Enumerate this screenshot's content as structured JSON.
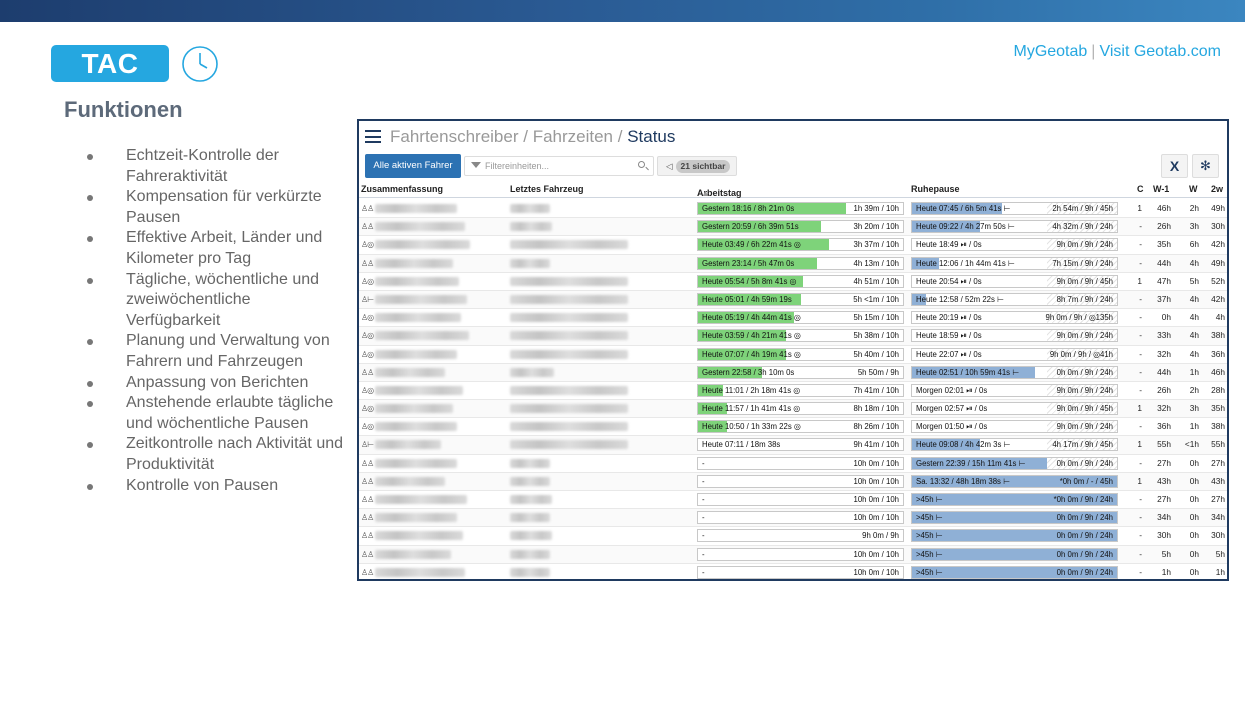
{
  "header": {
    "badge": "TAC",
    "clock_icon": "clock-icon",
    "links": {
      "mygeotab": "MyGeotab",
      "separator": "|",
      "visit": "Visit Geotab.com"
    }
  },
  "section": {
    "title": "Funktionen",
    "bullets": [
      "Echtzeit-Kontrolle der Fahreraktivität",
      "Kompensation für verkürzte Pausen",
      "Effektive Arbeit, Länder und Kilometer pro Tag",
      "Tägliche, wöchentliche und zweiwöchentliche Verfügbarkeit",
      "Planung und Verwaltung von Fahrern und Fahrzeugen",
      "Anpassung von Berichten",
      "Anstehende erlaubte tägliche und wöchentliche Pausen",
      "Zeitkontrolle nach Aktivität und Produktivität",
      "Kontrolle von Pausen"
    ]
  },
  "app": {
    "breadcrumb": {
      "part1": "Fahrtenschreiber",
      "sep": " / ",
      "part2": "Fahrzeiten",
      "current": "Status"
    },
    "toolbar": {
      "active_drivers": "Alle aktiven Fahrer",
      "filter_placeholder": "Filtereinheiten...",
      "visible_count": "21 sichtbar",
      "excel": "X",
      "settings_icon": "gear-icon"
    },
    "columns": {
      "summary": "Zusammenfassung",
      "vehicle": "Letztes Fahrzeug",
      "workday": "Arbeitstag",
      "rest": "Ruhepause",
      "c": "C",
      "w1": "W-1",
      "w": "W",
      "w2": "2w"
    },
    "colors": {
      "work_fill": "#7ed37a",
      "rest_fill": "#8fb0d6",
      "frame": "#1f3a60",
      "accent": "#25a7e0"
    },
    "rows": [
      {
        "icon": "♙♙",
        "work": "Gestern 18:16 / 8h 21m 0s",
        "work_pct": 0.72,
        "work_right": "1h 39m / 10h",
        "rest": "Heute 07:45 / 6h 5m 41s ⊢",
        "rest_pct": 0.44,
        "rest_right": "2h 54m / 9h / 45h",
        "c": "1",
        "w1": "46h",
        "w": "2h",
        "w2": "49h"
      },
      {
        "icon": "♙♙",
        "work": "Gestern 20:59 / 6h 39m 51s",
        "work_pct": 0.6,
        "work_right": "3h 20m / 10h",
        "rest": "Heute 09:22 / 4h 27m 50s ⊢",
        "rest_pct": 0.33,
        "rest_right": "4h 32m / 9h / 24h",
        "c": "-",
        "w1": "26h",
        "w": "3h",
        "w2": "30h"
      },
      {
        "icon": "♙◎",
        "work": "Heute 03:49 / 6h 22m 41s ◎",
        "work_pct": 0.64,
        "work_right": "3h 37m / 10h",
        "rest": "Heute 18:49 ⏯ / 0s",
        "rest_pct": 0,
        "rest_right": "9h 0m / 9h / 24h",
        "c": "-",
        "w1": "35h",
        "w": "6h",
        "w2": "42h"
      },
      {
        "icon": "♙♙",
        "work": "Gestern 23:14 / 5h 47m 0s",
        "work_pct": 0.58,
        "work_right": "4h 13m / 10h",
        "rest": "Heute 12:06 / 1h 44m 41s ⊢",
        "rest_pct": 0.13,
        "rest_right": "7h 15m / 9h / 24h",
        "c": "-",
        "w1": "44h",
        "w": "4h",
        "w2": "49h"
      },
      {
        "icon": "♙◎",
        "work": "Heute 05:54 / 5h 8m 41s ◎",
        "work_pct": 0.51,
        "work_right": "4h 51m / 10h",
        "rest": "Heute 20:54 ⏯ / 0s",
        "rest_pct": 0,
        "rest_right": "9h 0m / 9h / 45h",
        "c": "1",
        "w1": "47h",
        "w": "5h",
        "w2": "52h"
      },
      {
        "icon": "♙⊢",
        "work": "Heute 05:01 / 4h 59m 19s",
        "work_pct": 0.5,
        "work_right": "5h <1m / 10h",
        "rest": "Heute 12:58 / 52m 22s ⊢",
        "rest_pct": 0.07,
        "rest_right": "8h 7m / 9h / 24h",
        "c": "-",
        "w1": "37h",
        "w": "4h",
        "w2": "42h"
      },
      {
        "icon": "♙◎",
        "work": "Heute 05:19 / 4h 44m 41s ◎",
        "work_pct": 0.47,
        "work_right": "5h 15m / 10h",
        "rest": "Heute 20:19 ⏯ / 0s",
        "rest_pct": 0,
        "rest_right": "9h 0m / 9h / ◎135h",
        "c": "-",
        "w1": "0h",
        "w": "4h",
        "w2": "4h"
      },
      {
        "icon": "♙◎",
        "work": "Heute 03:59 / 4h 21m 41s ◎",
        "work_pct": 0.43,
        "work_right": "5h 38m / 10h",
        "rest": "Heute 18:59 ⏯ / 0s",
        "rest_pct": 0,
        "rest_right": "9h 0m / 9h / 24h",
        "c": "-",
        "w1": "33h",
        "w": "4h",
        "w2": "38h"
      },
      {
        "icon": "♙◎",
        "work": "Heute 07:07 / 4h 19m 41s ◎",
        "work_pct": 0.43,
        "work_right": "5h 40m / 10h",
        "rest": "Heute 22:07 ⏯ / 0s",
        "rest_pct": 0,
        "rest_right": "9h 0m / 9h / ◎41h",
        "c": "-",
        "w1": "32h",
        "w": "4h",
        "w2": "36h"
      },
      {
        "icon": "♙♙",
        "work": "Gestern 22:58 / 3h 10m 0s",
        "work_pct": 0.31,
        "work_right": "5h 50m / 9h",
        "rest": "Heute 02:51 / 10h 59m 41s ⊢",
        "rest_pct": 0.6,
        "rest_right": "0h 0m / 9h / 24h",
        "c": "-",
        "w1": "44h",
        "w": "1h",
        "w2": "46h"
      },
      {
        "icon": "♙◎",
        "work": "Heute 11:01 / 2h 18m 41s ◎",
        "work_pct": 0.12,
        "work_right": "7h 41m / 10h",
        "rest": "Morgen 02:01 ⏯ / 0s",
        "rest_pct": 0,
        "rest_right": "9h 0m / 9h / 24h",
        "c": "-",
        "w1": "26h",
        "w": "2h",
        "w2": "28h"
      },
      {
        "icon": "♙◎",
        "work": "Heute 11:57 / 1h 41m 41s ◎",
        "work_pct": 0.14,
        "work_right": "8h 18m / 10h",
        "rest": "Morgen 02:57 ⏯ / 0s",
        "rest_pct": 0,
        "rest_right": "9h 0m / 9h / 45h",
        "c": "1",
        "w1": "32h",
        "w": "3h",
        "w2": "35h"
      },
      {
        "icon": "♙◎",
        "work": "Heute 10:50 / 1h 33m 22s ◎",
        "work_pct": 0.14,
        "work_right": "8h 26m / 10h",
        "rest": "Morgen 01:50 ⏯ / 0s",
        "rest_pct": 0,
        "rest_right": "9h 0m / 9h / 24h",
        "c": "-",
        "w1": "36h",
        "w": "1h",
        "w2": "38h"
      },
      {
        "icon": "♙⊢",
        "work": "Heute 07:11 / 18m 38s",
        "work_pct": 0,
        "work_right": "9h 41m / 10h",
        "rest": "Heute 09:08 / 4h 42m 3s ⊢",
        "rest_pct": 0.33,
        "rest_right": "4h 17m / 9h / 45h",
        "c": "1",
        "w1": "55h",
        "w": "<1h",
        "w2": "55h"
      },
      {
        "icon": "♙♙",
        "work": "-",
        "work_pct": 0,
        "work_right": "10h 0m / 10h",
        "rest": "Gestern 22:39 / 15h 11m 41s ⊢",
        "rest_pct": 0.66,
        "rest_right": "0h 0m / 9h / 24h",
        "c": "-",
        "w1": "27h",
        "w": "0h",
        "w2": "27h"
      },
      {
        "icon": "♙♙",
        "work": "-",
        "work_pct": 0,
        "work_right": "10h 0m / 10h",
        "rest": "Sa. 13:32 / 48h 18m 38s ⊢",
        "rest_pct": 1,
        "rest_right": "*0h 0m / - / 45h",
        "c": "1",
        "w1": "43h",
        "w": "0h",
        "w2": "43h"
      },
      {
        "icon": "♙♙",
        "work": "-",
        "work_pct": 0,
        "work_right": "10h 0m / 10h",
        "rest": ">45h ⊢",
        "rest_pct": 1,
        "rest_right": "*0h 0m / 9h / 24h",
        "c": "-",
        "w1": "27h",
        "w": "0h",
        "w2": "27h"
      },
      {
        "icon": "♙♙",
        "work": "-",
        "work_pct": 0,
        "work_right": "10h 0m / 10h",
        "rest": ">45h ⊢",
        "rest_pct": 1,
        "rest_right": "0h 0m / 9h / 24h",
        "c": "-",
        "w1": "34h",
        "w": "0h",
        "w2": "34h"
      },
      {
        "icon": "♙♙",
        "work": "-",
        "work_pct": 0,
        "work_right": "9h 0m / 9h",
        "rest": ">45h ⊢",
        "rest_pct": 1,
        "rest_right": "0h 0m / 9h / 24h",
        "c": "-",
        "w1": "30h",
        "w": "0h",
        "w2": "30h"
      },
      {
        "icon": "♙♙",
        "work": "-",
        "work_pct": 0,
        "work_right": "10h 0m / 10h",
        "rest": ">45h ⊢",
        "rest_pct": 1,
        "rest_right": "0h 0m / 9h / 24h",
        "c": "-",
        "w1": "5h",
        "w": "0h",
        "w2": "5h"
      },
      {
        "icon": "♙♙",
        "work": "-",
        "work_pct": 0,
        "work_right": "10h 0m / 10h",
        "rest": ">45h ⊢",
        "rest_pct": 1,
        "rest_right": "0h 0m / 9h / 24h",
        "c": "-",
        "w1": "1h",
        "w": "0h",
        "w2": "1h"
      }
    ]
  }
}
